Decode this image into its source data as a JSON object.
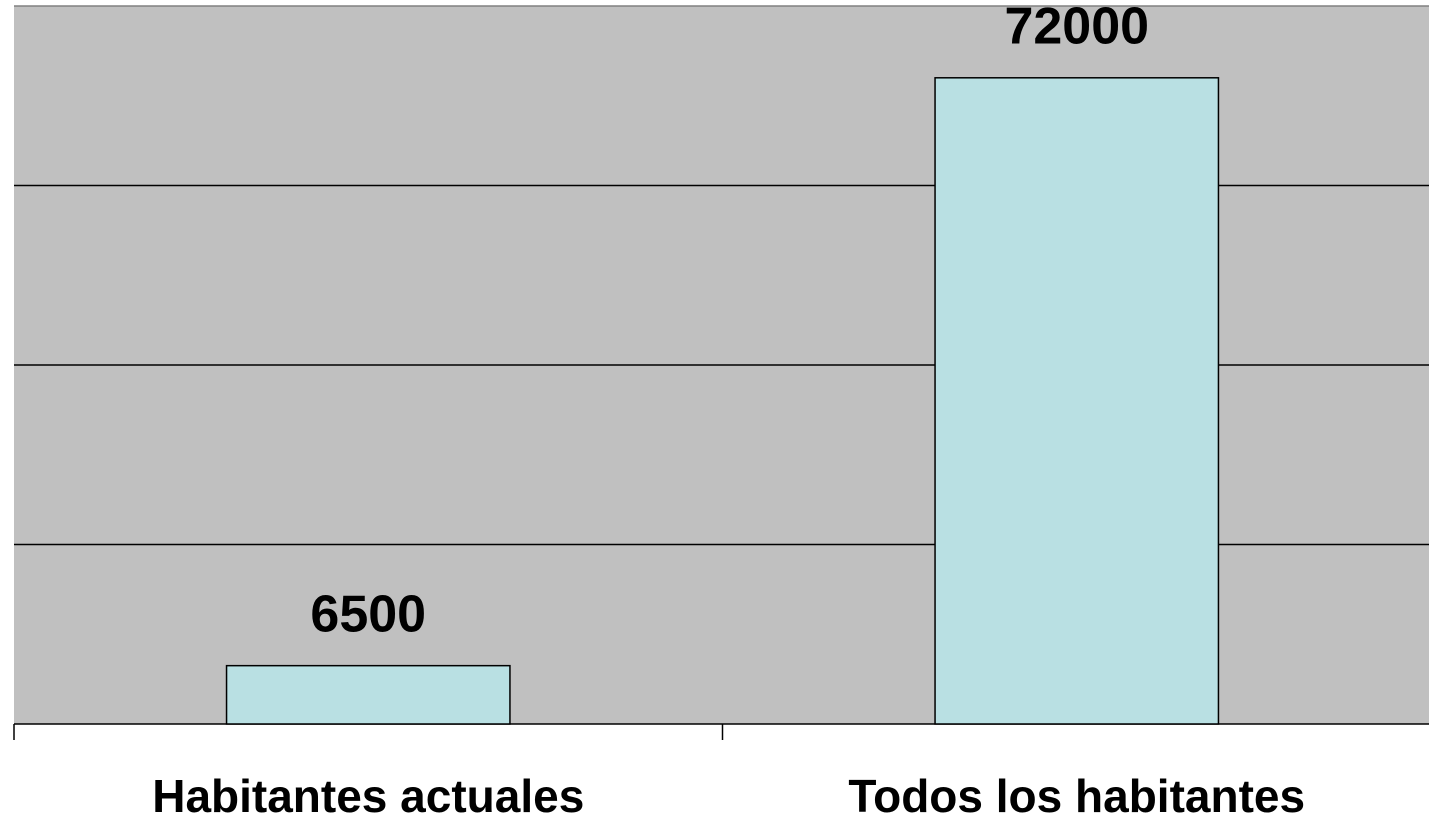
{
  "chart_data": {
    "type": "bar",
    "categories": [
      "Habitantes actuales",
      "Todos los habitantes"
    ],
    "values": [
      6500,
      72000
    ],
    "color": "#b9e0e3",
    "background": "#c0c0c0",
    "ylim": [
      0,
      80000
    ],
    "yticks": [
      0,
      20000,
      40000,
      60000,
      80000
    ],
    "grid": true
  }
}
